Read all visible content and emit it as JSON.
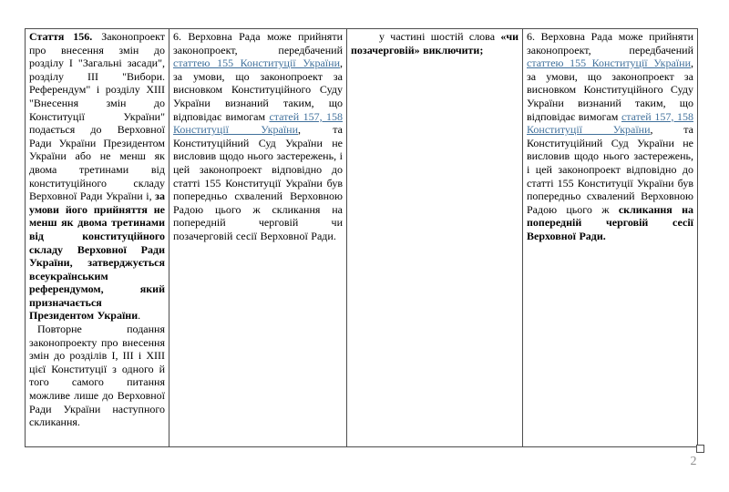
{
  "page": {
    "number": "2"
  },
  "colors": {
    "link": "#41719C",
    "border": "#4d4d4d",
    "page_number": "#8c8c8c",
    "text": "#000000",
    "background": "#ffffff"
  },
  "table": {
    "cells": [
      {
        "id": "current-article-156",
        "paragraphs": [
          {
            "indent": false,
            "segments": [
              {
                "text": "Стаття 156.",
                "bold": true
              },
              {
                "text": " Законопроект про внесення змін до розділу I \"Загальні засади\", розділу III \"Вибори. Референдум\" і розділу XIII \"Внесення змін до Конституції України\" подається до Верховної Ради України Президентом України або не менш як двома третинами від конституційного складу Верховної Ради України і, "
              },
              {
                "text": "за умови його прийняття не менш як двома третинами від конституційного складу Верховної Ради України, затверджується всеукраїнським референдумом, який призначається Президентом України",
                "bold": true
              },
              {
                "text": "."
              }
            ]
          },
          {
            "indent": true,
            "segments": [
              {
                "text": "Повторне подання законопроекту про внесення змін до розділів I, III і XIII цієї Конституції з одного й того самого питання можливе лише до Верховної Ради України наступного скликання."
              }
            ]
          }
        ]
      },
      {
        "id": "part-6-current-wording",
        "paragraphs": [
          {
            "indent": false,
            "segments": [
              {
                "text": "6. Верховна Рада може прийняти законопроект, передбачений "
              },
              {
                "text": "статтею 155 Конституції України",
                "link": true
              },
              {
                "text": ", за умови, що законопроект за висновком Конституційного Суду України визнаний таким, що відповідає вимогам "
              },
              {
                "text": "статей 157, 158 Конституції України",
                "link": true
              },
              {
                "text": ", та Конституційний Суд України не висловив щодо нього застережень, і цей законопроект відповідно до статті 155 Конституції України був попередньо схвалений Верховною Радою цього ж скликання на попередній черговій чи позачерговій сесії Верховної Ради."
              }
            ]
          }
        ]
      },
      {
        "id": "amendment-instruction",
        "paragraphs": [
          {
            "indent": true,
            "segments": [
              {
                "text": "у частині шостій слова "
              },
              {
                "text": "«чи позачерговій» виключити;",
                "bold": true
              }
            ]
          }
        ]
      },
      {
        "id": "part-6-amended-wording",
        "paragraphs": [
          {
            "indent": false,
            "segments": [
              {
                "text": "6. Верховна Рада може прийняти законопроект, передбачений "
              },
              {
                "text": "статтею 155 Конституції України",
                "link": true
              },
              {
                "text": ", за умови, що законопроект за висновком Конституційного Суду України визнаний таким, що відповідає вимогам "
              },
              {
                "text": "статей 157, 158 Конституції України",
                "link": true
              },
              {
                "text": ", та Конституційний Суд України не висловив щодо нього застережень, і цей законопроект відповідно до статті 155 Конституції України був попередньо схвалений Верховною Радою цього ж "
              },
              {
                "text": "скликання на попередній черговій сесії Верховної Ради.",
                "bold": true
              }
            ]
          }
        ]
      }
    ]
  }
}
